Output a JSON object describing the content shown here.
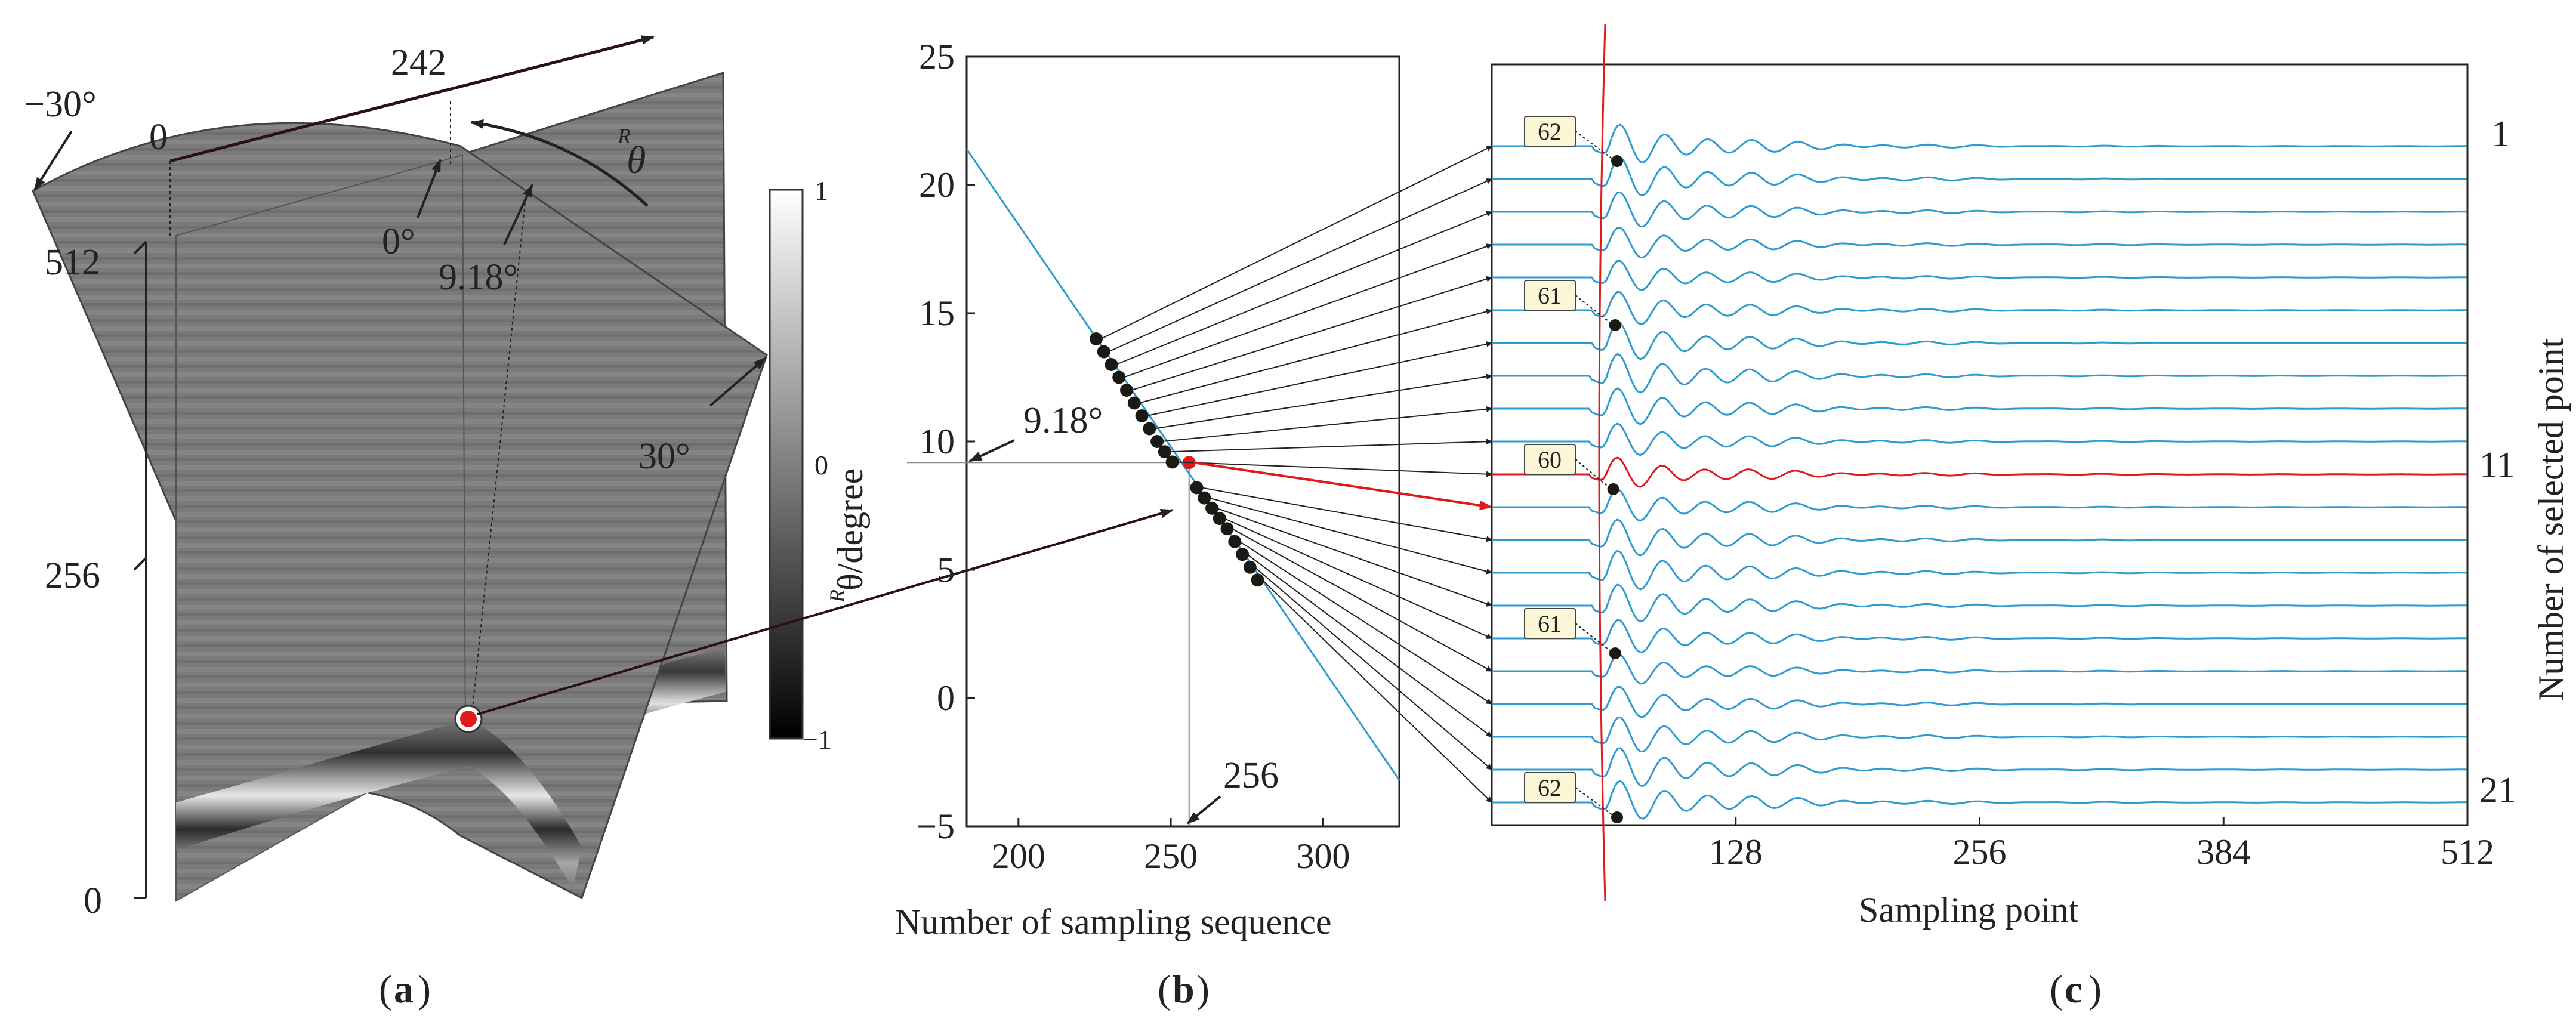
{
  "panel_a": {
    "top_label": "242",
    "left_label": "0",
    "angle_neg": "−30°",
    "angle_zero": "0°",
    "angle_sel": "9.18°",
    "angle_pos": "30°",
    "theta_sup": "R",
    "theta": "θ",
    "depth_ticks": [
      "512",
      "256",
      "0"
    ],
    "colorbar_ticks": [
      "1",
      "0",
      "−1"
    ],
    "caption": "a"
  },
  "panel_b": {
    "caption": "b",
    "annotation_angle": "9.18°",
    "annotation_seq": "256"
  },
  "panel_c": {
    "caption": "c",
    "sample_boxes": [
      "62",
      "61",
      "60",
      "61",
      "62"
    ],
    "right_ticks": [
      "1",
      "11",
      "21"
    ],
    "ylabel": "Number of selected point"
  },
  "colors": {
    "curve": "#2e9bd0",
    "highlight": "#e0191c",
    "point": "#1a1a14",
    "box_fill": "#fbf6d6"
  },
  "chart_data": [
    {
      "type": "line",
      "title": "",
      "xlabel": "Number of sampling sequence",
      "ylabel_sup": "R",
      "ylabel": "θ/degree",
      "xlim": [
        183,
        325
      ],
      "ylim": [
        -5,
        25
      ],
      "xticks": [
        "200",
        "250",
        "300"
      ],
      "yticks": [
        "-5",
        "0",
        "5",
        "10",
        "15",
        "20",
        "25"
      ],
      "line": {
        "x": [
          183,
          325
        ],
        "y": [
          21.4,
          -3.2
        ]
      },
      "selected_points": {
        "x": [
          225.5,
          228,
          230.5,
          233,
          235.5,
          238,
          240.5,
          243,
          245.5,
          248,
          250.5,
          256,
          258.5,
          261,
          263.5,
          266,
          268.5,
          271,
          273.5,
          276,
          278.5
        ],
        "y": [
          14,
          13.5,
          13,
          12.5,
          12,
          11.5,
          11,
          10.5,
          10,
          9.6,
          9.2,
          9.18,
          8.2,
          7.8,
          7.4,
          7.0,
          6.6,
          6.1,
          5.6,
          5.1,
          4.6
        ],
        "highlighted_index": 11
      },
      "guide_x": 256,
      "guide_y": 9.18
    },
    {
      "type": "line",
      "title": "",
      "xlabel": "Sampling point",
      "xlim": [
        0,
        512
      ],
      "xticks": [
        "128",
        "256",
        "384",
        "512"
      ],
      "n_traces": 21,
      "highlighted_trace": 11,
      "first_break_samples": [
        62,
        61,
        60,
        61,
        62
      ],
      "first_break_traces": [
        1,
        6,
        11,
        16,
        21
      ]
    }
  ]
}
